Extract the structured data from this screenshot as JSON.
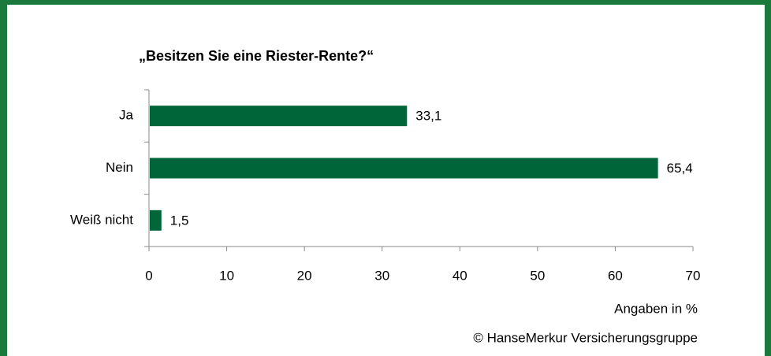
{
  "chart_data": {
    "type": "bar",
    "orientation": "horizontal",
    "title": "„Besitzen Sie eine Riester-Rente?“",
    "categories": [
      "Ja",
      "Nein",
      "Weiß nicht"
    ],
    "values": [
      33.1,
      65.4,
      1.5
    ],
    "value_labels": [
      "33,1",
      "65,4",
      "1,5"
    ],
    "color": "#00663a",
    "xlim": [
      0,
      70
    ],
    "xticks": [
      0,
      10,
      20,
      30,
      40,
      50,
      60,
      70
    ],
    "xlabel": "Angaben in %",
    "source": "© HanseMerkur Versicherungsgruppe"
  }
}
